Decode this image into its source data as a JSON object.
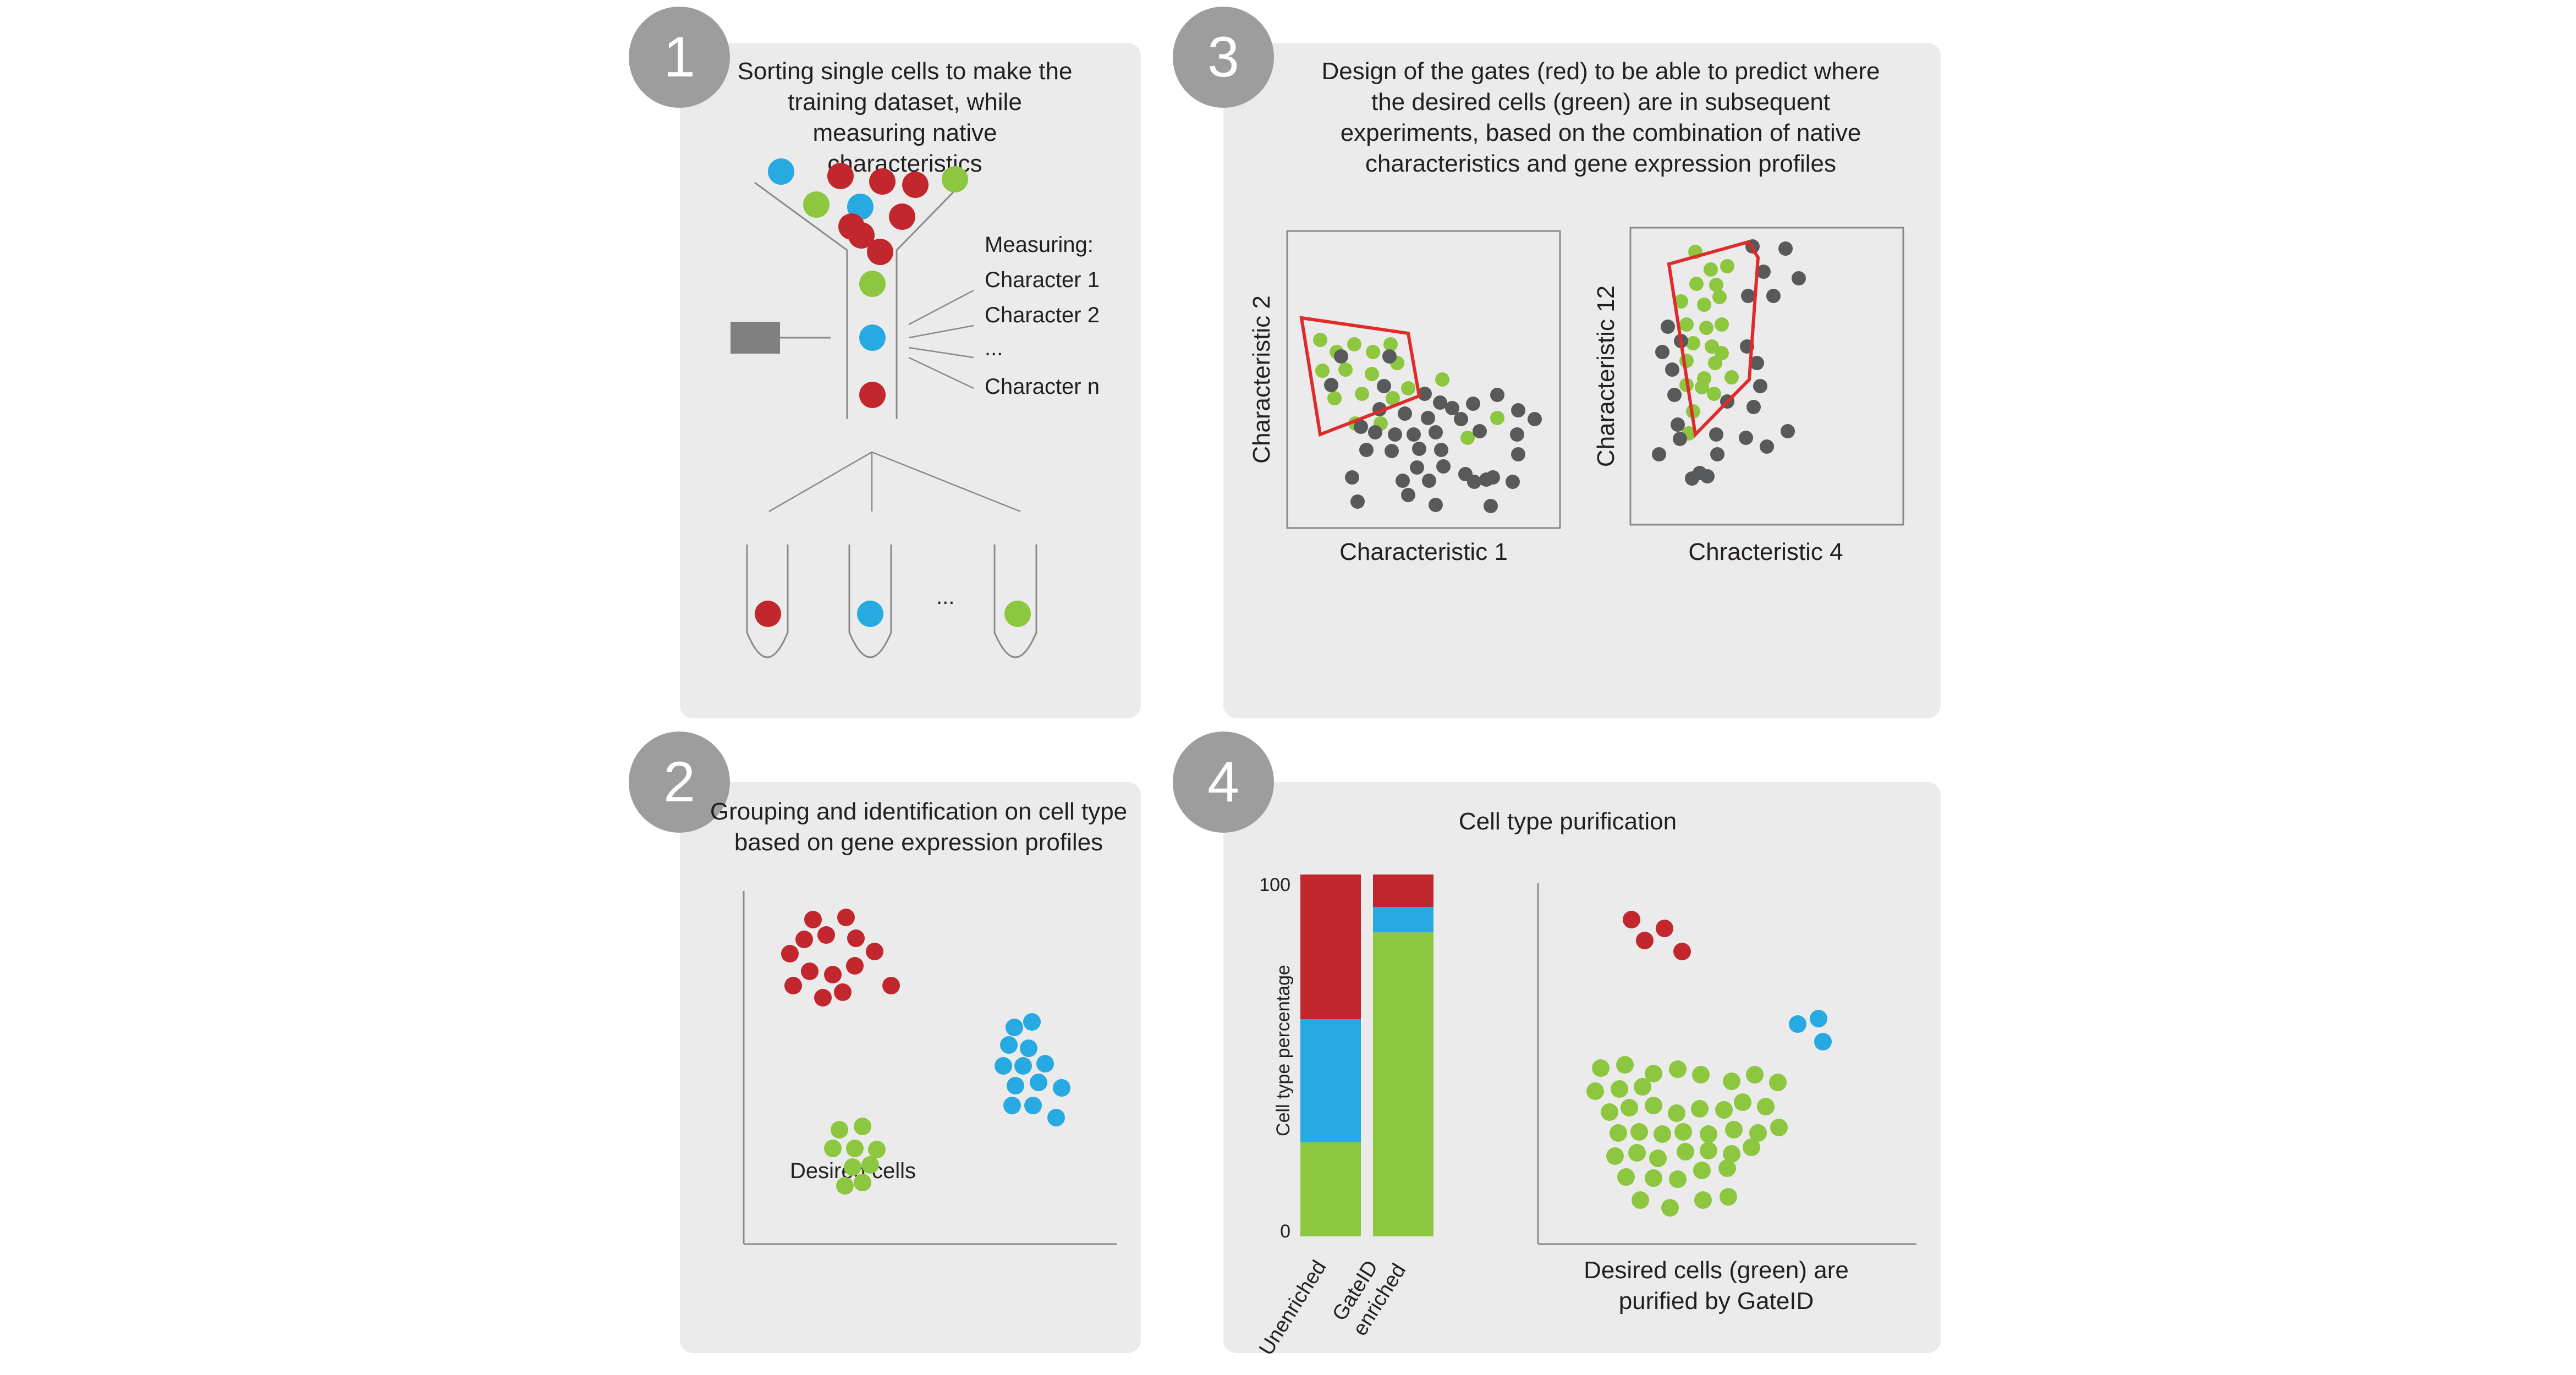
{
  "colors": {
    "red": "#c1272d",
    "blue": "#27aae1",
    "green": "#8dc63f",
    "grey_dot": "#58595b",
    "gate": "#e02b2b",
    "panel": "#ebebeb",
    "badge": "#9d9d9e",
    "detector": "#808080"
  },
  "panel1": {
    "badge": "1",
    "title": "Sorting single cells to make the training dataset, while measuring native characteristics",
    "measuring_header": "Measuring:",
    "measuring_items": [
      "Character 1",
      "Character 2",
      "...",
      "Character n"
    ],
    "ellipsis": "...",
    "icons": [
      "funnel-icon",
      "detector-icon",
      "tube-icon"
    ]
  },
  "panel2": {
    "badge": "2",
    "title": "Grouping and identification on cell type based on gene expression profiles",
    "label": "Desired cells"
  },
  "panel3": {
    "badge": "3",
    "title": "Design of the gates (red) to be able to predict where the desired cells (green) are in subsequent experiments, based on the combination of native characteristics and gene expression profiles",
    "plot_a": {
      "xlabel": "Characteristic 1",
      "ylabel": "Characteristic 2"
    },
    "plot_b": {
      "xlabel": "Chracteristic 4",
      "ylabel": "Characteristic 12"
    }
  },
  "panel4": {
    "badge": "4",
    "title": "Cell type purification",
    "scatter_caption": "Desired cells (green) are purified by GateID"
  },
  "chart_data": {
    "type": "bar",
    "stacked": true,
    "categories": [
      "Unenriched",
      "GateID enriched"
    ],
    "ylabel": "Cell type percentage",
    "yticks": [
      "100",
      "0"
    ],
    "ylim": [
      0,
      100
    ],
    "series": [
      {
        "color": "#8dc63f",
        "values": [
          26,
          84
        ]
      },
      {
        "color": "#27aae1",
        "values": [
          34,
          7
        ]
      },
      {
        "color": "#c1272d",
        "values": [
          40,
          9
        ]
      }
    ]
  }
}
